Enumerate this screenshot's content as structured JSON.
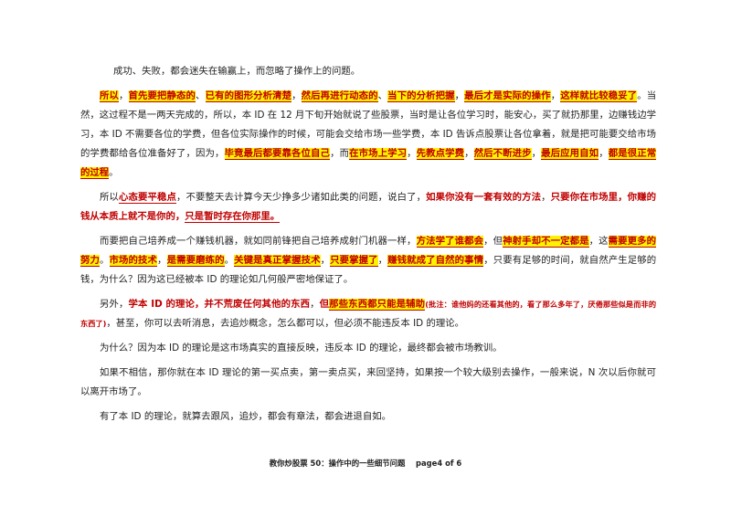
{
  "p1": {
    "a": "成功、失败，都会迷失在输赢上，而忽略了操作上的问题。"
  },
  "p2": {
    "h1": "所以",
    "t1": "，",
    "h2": "首先要把静态的",
    "t2": "、",
    "h3": "已有的图形分析清楚",
    "t3": "，",
    "h4": "然后再进行动态的",
    "t4": "、",
    "h5": "当下的分析把握",
    "t5": "，",
    "h6": "最后才是实际的操作",
    "t6": "，",
    "h7": "这样就比较稳妥了",
    "t7": "。当然，这过程不是一两天完成的，所以，本 ID 在 12 月下旬开始就说了些股票，当时是让各位学习时，能安心，买了就扔那里，边赚钱边学习，本 ID 不需要各位的学费，但各位实际操作的时候，可能会交给市场一些学费，本 ID 告诉点股票让各位拿着，就是把可能要交给市场的学费都给各位准备好了，因为，",
    "h8": "毕竟最后都要靠各位自己",
    "t8": "，而",
    "h9": "在市场上学习",
    "t9": "，",
    "h10": "先教点学费",
    "t10": "，",
    "h11": "然后不断进步",
    "t11": "，",
    "h12": "最后应用自如",
    "t12": "，",
    "h13": "都是很正常的过程",
    "t13": "。"
  },
  "p3": {
    "t1": "所以",
    "u1": "心态要平稳点",
    "t2": "，不要整天去计算今天少挣多少诸如此类的问题，说白了，",
    "r1": "如果你没有一套有效的方法",
    "t3": "，",
    "r2": "只要你在市场里，你赚的钱从本质上就不是你的，",
    "r3": "只是暂时存在你那里。"
  },
  "p4": {
    "t1": "而要把自己培养成一个赚钱机器，就如同前锋把自己培养成射门机器一样，",
    "h1": "方法学了谁都会",
    "t2": "，但",
    "h2": "神射手却不一定都是",
    "t3": "，这",
    "h3": "需要更多的努力",
    "t4": "。",
    "h4": "市场的技术",
    "t5": "，",
    "h5": "是需要磨练的",
    "t6": "。",
    "h6": "关键是真正掌握技术",
    "t7": "，",
    "h7": "只要掌握了",
    "t8": "，",
    "h8": "赚钱就成了自然的事情",
    "t9": "，只要有足够的时间，就自然产生足够的钱，为什么？因为这已经被本 ID 的理论如几何般严密地保证了。"
  },
  "p5": {
    "t1": "另外，",
    "r1": "学本 ID 的理论，并不荒废任何其他的东西",
    "t2": "，",
    "r2": "但",
    "h1": "那些东西都只能是辅助",
    "s1": "(批注：谁他妈的还看其他的，看了那么多年了，厌倦那些似是而非的东西了)",
    "t3": "，甚至，你可以去听消息，去追炒概念，怎么都可以，但必须不能违反本 ID 的理论。"
  },
  "p6": {
    "a": "为什么？因为本 ID 的理论是这市场真实的直接反映，违反本 ID 的理论，最终都会被市场教训。"
  },
  "p7": {
    "a": "如果不相信，那你就在本 ID 理论的第一买点卖，第一卖点买，来回坚持，如果按一个较大级别去操作，一般来说，N 次以后你就可以离开市场了。"
  },
  "p8": {
    "a": "有了本 ID 的理论，就算去跟风，追炒，都会有章法，都会进退自如。"
  },
  "footer": {
    "title": "教你炒股票 50：操作中的一些细节问题",
    "page": "page4 of 6"
  }
}
